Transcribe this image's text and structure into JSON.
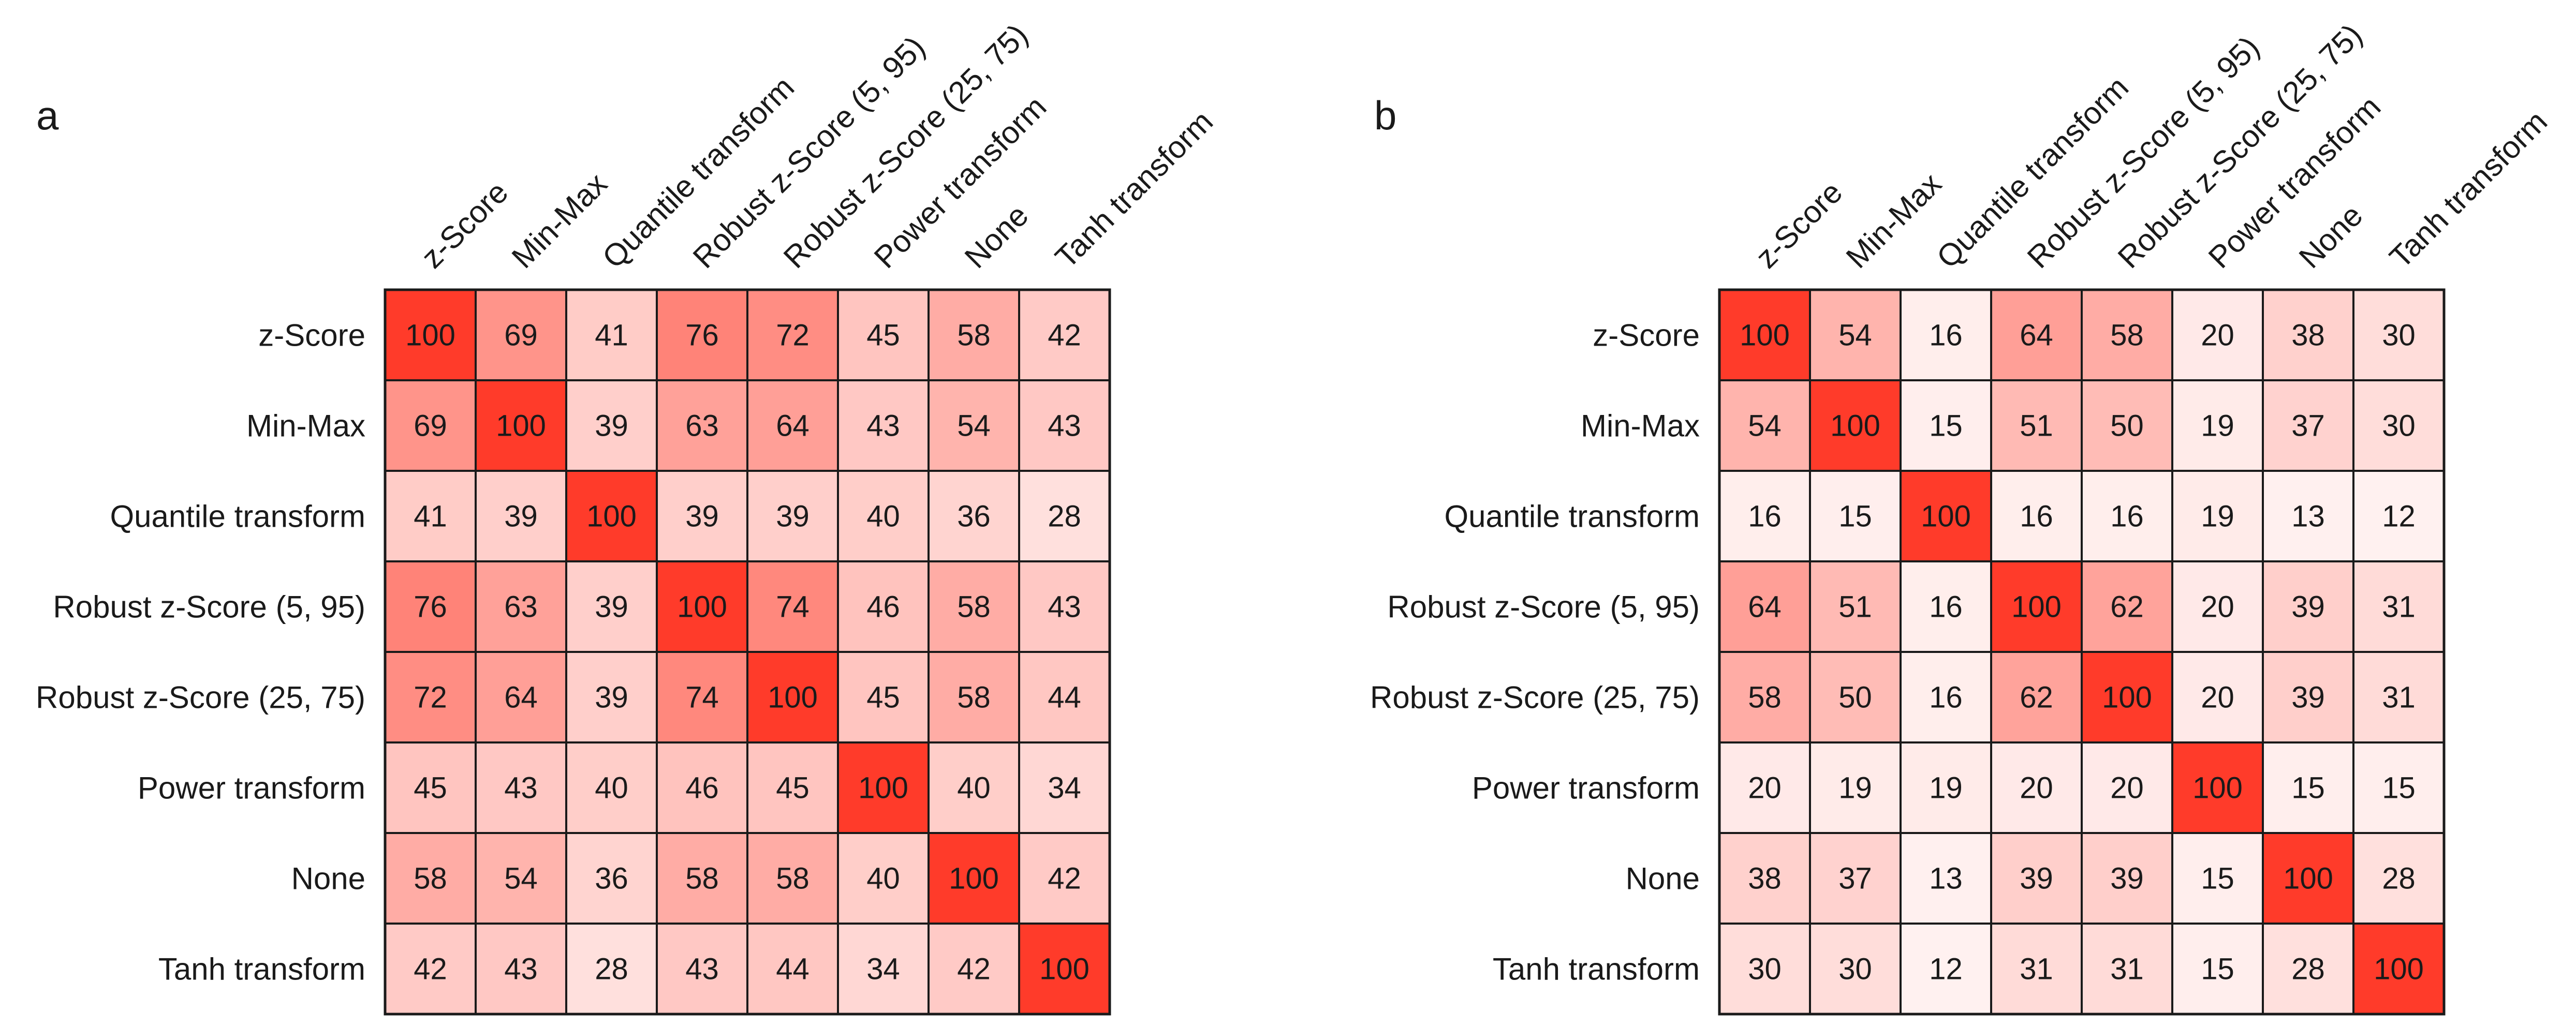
{
  "chart_data": [
    {
      "type": "heatmap",
      "panel_label": "a",
      "title": "",
      "xlabel": "",
      "ylabel": "",
      "categories": [
        "z-Score",
        "Min-Max",
        "Quantile transform",
        "Robust z-Score (5, 95)",
        "Robust z-Score (25, 75)",
        "Power transform",
        "None",
        "Tanh transform"
      ],
      "values": [
        [
          100,
          69,
          41,
          76,
          72,
          45,
          58,
          42
        ],
        [
          69,
          100,
          39,
          63,
          64,
          43,
          54,
          43
        ],
        [
          41,
          39,
          100,
          39,
          39,
          40,
          36,
          28
        ],
        [
          76,
          63,
          39,
          100,
          74,
          46,
          58,
          43
        ],
        [
          72,
          64,
          39,
          74,
          100,
          45,
          58,
          44
        ],
        [
          45,
          43,
          40,
          46,
          45,
          100,
          40,
          34
        ],
        [
          58,
          54,
          36,
          58,
          58,
          40,
          100,
          42
        ],
        [
          42,
          43,
          28,
          43,
          44,
          34,
          42,
          100
        ]
      ],
      "value_range": [
        0,
        100
      ],
      "colormap": [
        "#ffffff",
        "#ff3b2a"
      ]
    },
    {
      "type": "heatmap",
      "panel_label": "b",
      "title": "",
      "xlabel": "",
      "ylabel": "",
      "categories": [
        "z-Score",
        "Min-Max",
        "Quantile transform",
        "Robust z-Score (5, 95)",
        "Robust z-Score (25, 75)",
        "Power transform",
        "None",
        "Tanh transform"
      ],
      "values": [
        [
          100,
          54,
          16,
          64,
          58,
          20,
          38,
          30
        ],
        [
          54,
          100,
          15,
          51,
          50,
          19,
          37,
          30
        ],
        [
          16,
          15,
          100,
          16,
          16,
          19,
          13,
          12
        ],
        [
          64,
          51,
          16,
          100,
          62,
          20,
          39,
          31
        ],
        [
          58,
          50,
          16,
          62,
          100,
          20,
          39,
          31
        ],
        [
          20,
          19,
          19,
          20,
          20,
          100,
          15,
          15
        ],
        [
          38,
          37,
          13,
          39,
          39,
          15,
          100,
          28
        ],
        [
          30,
          30,
          12,
          31,
          31,
          15,
          28,
          100
        ]
      ],
      "value_range": [
        0,
        100
      ],
      "colormap": [
        "#ffffff",
        "#ff3b2a"
      ]
    }
  ]
}
